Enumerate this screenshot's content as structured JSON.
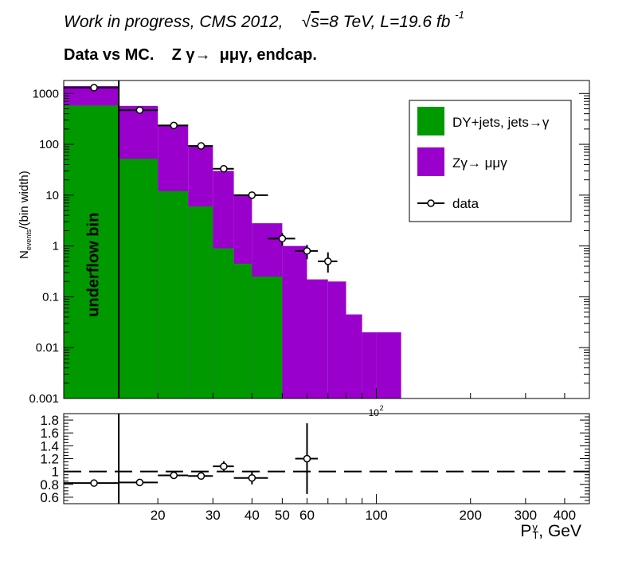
{
  "header": {
    "cms_line_prefix": "Work in progress, CMS 2012,",
    "sqrt_symbol": "√",
    "sqrt_arg": "s",
    "energy_text": "=8 TeV, L=19.6 fb",
    "lumi_exponent": "-1",
    "title": "Data vs MC.    Z γ→  μμγ, endcap."
  },
  "colors": {
    "dy_fill": "#009900",
    "zg_fill": "#9900cc",
    "line": "#000000",
    "frame": "#000000"
  },
  "chart_data": [
    {
      "type": "bar",
      "subtype": "stacked-histogram-with-points",
      "y_axis_label_main": "N",
      "y_axis_label_sub": "events",
      "y_axis_label_rest": "/(bin width)",
      "x_scale": "log",
      "y_scale": "log",
      "xlim": [
        10,
        480
      ],
      "ylim": [
        0.001,
        1800
      ],
      "y_ticks": [
        {
          "v": 1000,
          "label": "1000"
        },
        {
          "v": 100,
          "label": "100"
        },
        {
          "v": 10,
          "label": "10"
        },
        {
          "v": 1,
          "label": "1"
        },
        {
          "v": 0.1,
          "label": "0.1"
        },
        {
          "v": 0.01,
          "label": "0.01"
        },
        {
          "v": 0.001,
          "label": "0.001"
        }
      ],
      "x_exponent_label": "10",
      "x_exponent_sup": "2",
      "underflow_boundary_x": 15,
      "underflow_label": "underflow bin",
      "bin_edges": [
        10,
        15,
        20,
        25,
        30,
        35,
        40,
        50,
        60,
        70,
        80,
        90,
        100,
        120
      ],
      "series": [
        {
          "name": "DY+jets, jets→γ",
          "color_key": "dy_fill",
          "values": [
            580,
            52,
            12,
            6,
            0.9,
            0.45,
            0.25,
            0,
            0,
            0,
            0,
            0,
            0
          ]
        },
        {
          "name": "Zγ→ μμγ",
          "color_key": "zg_fill",
          "values": [
            1400,
            570,
            240,
            90,
            30,
            10,
            2.8,
            1.0,
            0.22,
            0.2,
            0.045,
            0.02,
            0.02
          ]
        }
      ],
      "data_points": {
        "name": "data",
        "points": [
          {
            "x": 12.5,
            "xlo": 10,
            "xhi": 15,
            "y": 1300,
            "ylo": 1260,
            "yhi": 1340
          },
          {
            "x": 17.5,
            "xlo": 15,
            "xhi": 20,
            "y": 470,
            "ylo": 450,
            "yhi": 490
          },
          {
            "x": 22.5,
            "xlo": 20,
            "xhi": 25,
            "y": 235,
            "ylo": 220,
            "yhi": 250
          },
          {
            "x": 27.5,
            "xlo": 25,
            "xhi": 30,
            "y": 93,
            "ylo": 85,
            "yhi": 101
          },
          {
            "x": 32.5,
            "xlo": 30,
            "xhi": 35,
            "y": 33,
            "ylo": 29,
            "yhi": 38
          },
          {
            "x": 40,
            "xlo": 35,
            "xhi": 45,
            "y": 10,
            "ylo": 8.5,
            "yhi": 11.5
          },
          {
            "x": 50,
            "xlo": 45,
            "xhi": 55,
            "y": 1.4,
            "ylo": 1.0,
            "yhi": 1.8
          },
          {
            "x": 60,
            "xlo": 55,
            "xhi": 65,
            "y": 0.8,
            "ylo": 0.55,
            "yhi": 1.05
          },
          {
            "x": 70,
            "xlo": 65,
            "xhi": 75,
            "y": 0.5,
            "ylo": 0.3,
            "yhi": 0.75
          }
        ]
      },
      "legend": [
        {
          "label": "DY+jets, jets→γ",
          "kind": "fill",
          "color_key": "dy_fill"
        },
        {
          "label": "Zγ→ μμγ",
          "kind": "fill",
          "color_key": "zg_fill"
        },
        {
          "label": "data",
          "kind": "marker"
        }
      ],
      "legend_position": "top-right"
    },
    {
      "type": "scatter",
      "subtype": "ratio",
      "x_scale": "log",
      "xlim": [
        10,
        480
      ],
      "ylim": [
        0.5,
        1.9
      ],
      "y_ticks": [
        {
          "v": 1.8,
          "label": "1.8"
        },
        {
          "v": 1.6,
          "label": "1.6"
        },
        {
          "v": 1.4,
          "label": "1.4"
        },
        {
          "v": 1.2,
          "label": "1.2"
        },
        {
          "v": 1.0,
          "label": "1"
        },
        {
          "v": 0.8,
          "label": "0.8"
        },
        {
          "v": 0.6,
          "label": "0.6"
        }
      ],
      "x_ticks": [
        {
          "v": 20,
          "label": "20"
        },
        {
          "v": 30,
          "label": "30"
        },
        {
          "v": 40,
          "label": "40"
        },
        {
          "v": 50,
          "label": "50"
        },
        {
          "v": 60,
          "label": "60"
        },
        {
          "v": 100,
          "label": "100"
        },
        {
          "v": 200,
          "label": "200"
        },
        {
          "v": 300,
          "label": "300"
        },
        {
          "v": 400,
          "label": "400"
        }
      ],
      "x_axis_label_main": "P",
      "x_axis_label_sup": "γ",
      "x_axis_label_sub": "T",
      "x_axis_label_rest": ", GeV",
      "reference_line": 1.0,
      "underflow_boundary_x": 15,
      "points": [
        {
          "x": 12.5,
          "xlo": 10,
          "xhi": 15,
          "y": 0.82,
          "ylo": 0.8,
          "yhi": 0.84
        },
        {
          "x": 17.5,
          "xlo": 15,
          "xhi": 20,
          "y": 0.83,
          "ylo": 0.81,
          "yhi": 0.85
        },
        {
          "x": 22.5,
          "xlo": 20,
          "xhi": 25,
          "y": 0.94,
          "ylo": 0.91,
          "yhi": 0.97
        },
        {
          "x": 27.5,
          "xlo": 25,
          "xhi": 30,
          "y": 0.93,
          "ylo": 0.9,
          "yhi": 0.96
        },
        {
          "x": 32.5,
          "xlo": 30,
          "xhi": 35,
          "y": 1.08,
          "ylo": 1.0,
          "yhi": 1.16
        },
        {
          "x": 40,
          "xlo": 35,
          "xhi": 45,
          "y": 0.9,
          "ylo": 0.8,
          "yhi": 1.0
        },
        {
          "x": 60,
          "xlo": 55,
          "xhi": 65,
          "y": 1.2,
          "ylo": 0.65,
          "yhi": 1.75
        }
      ]
    }
  ]
}
